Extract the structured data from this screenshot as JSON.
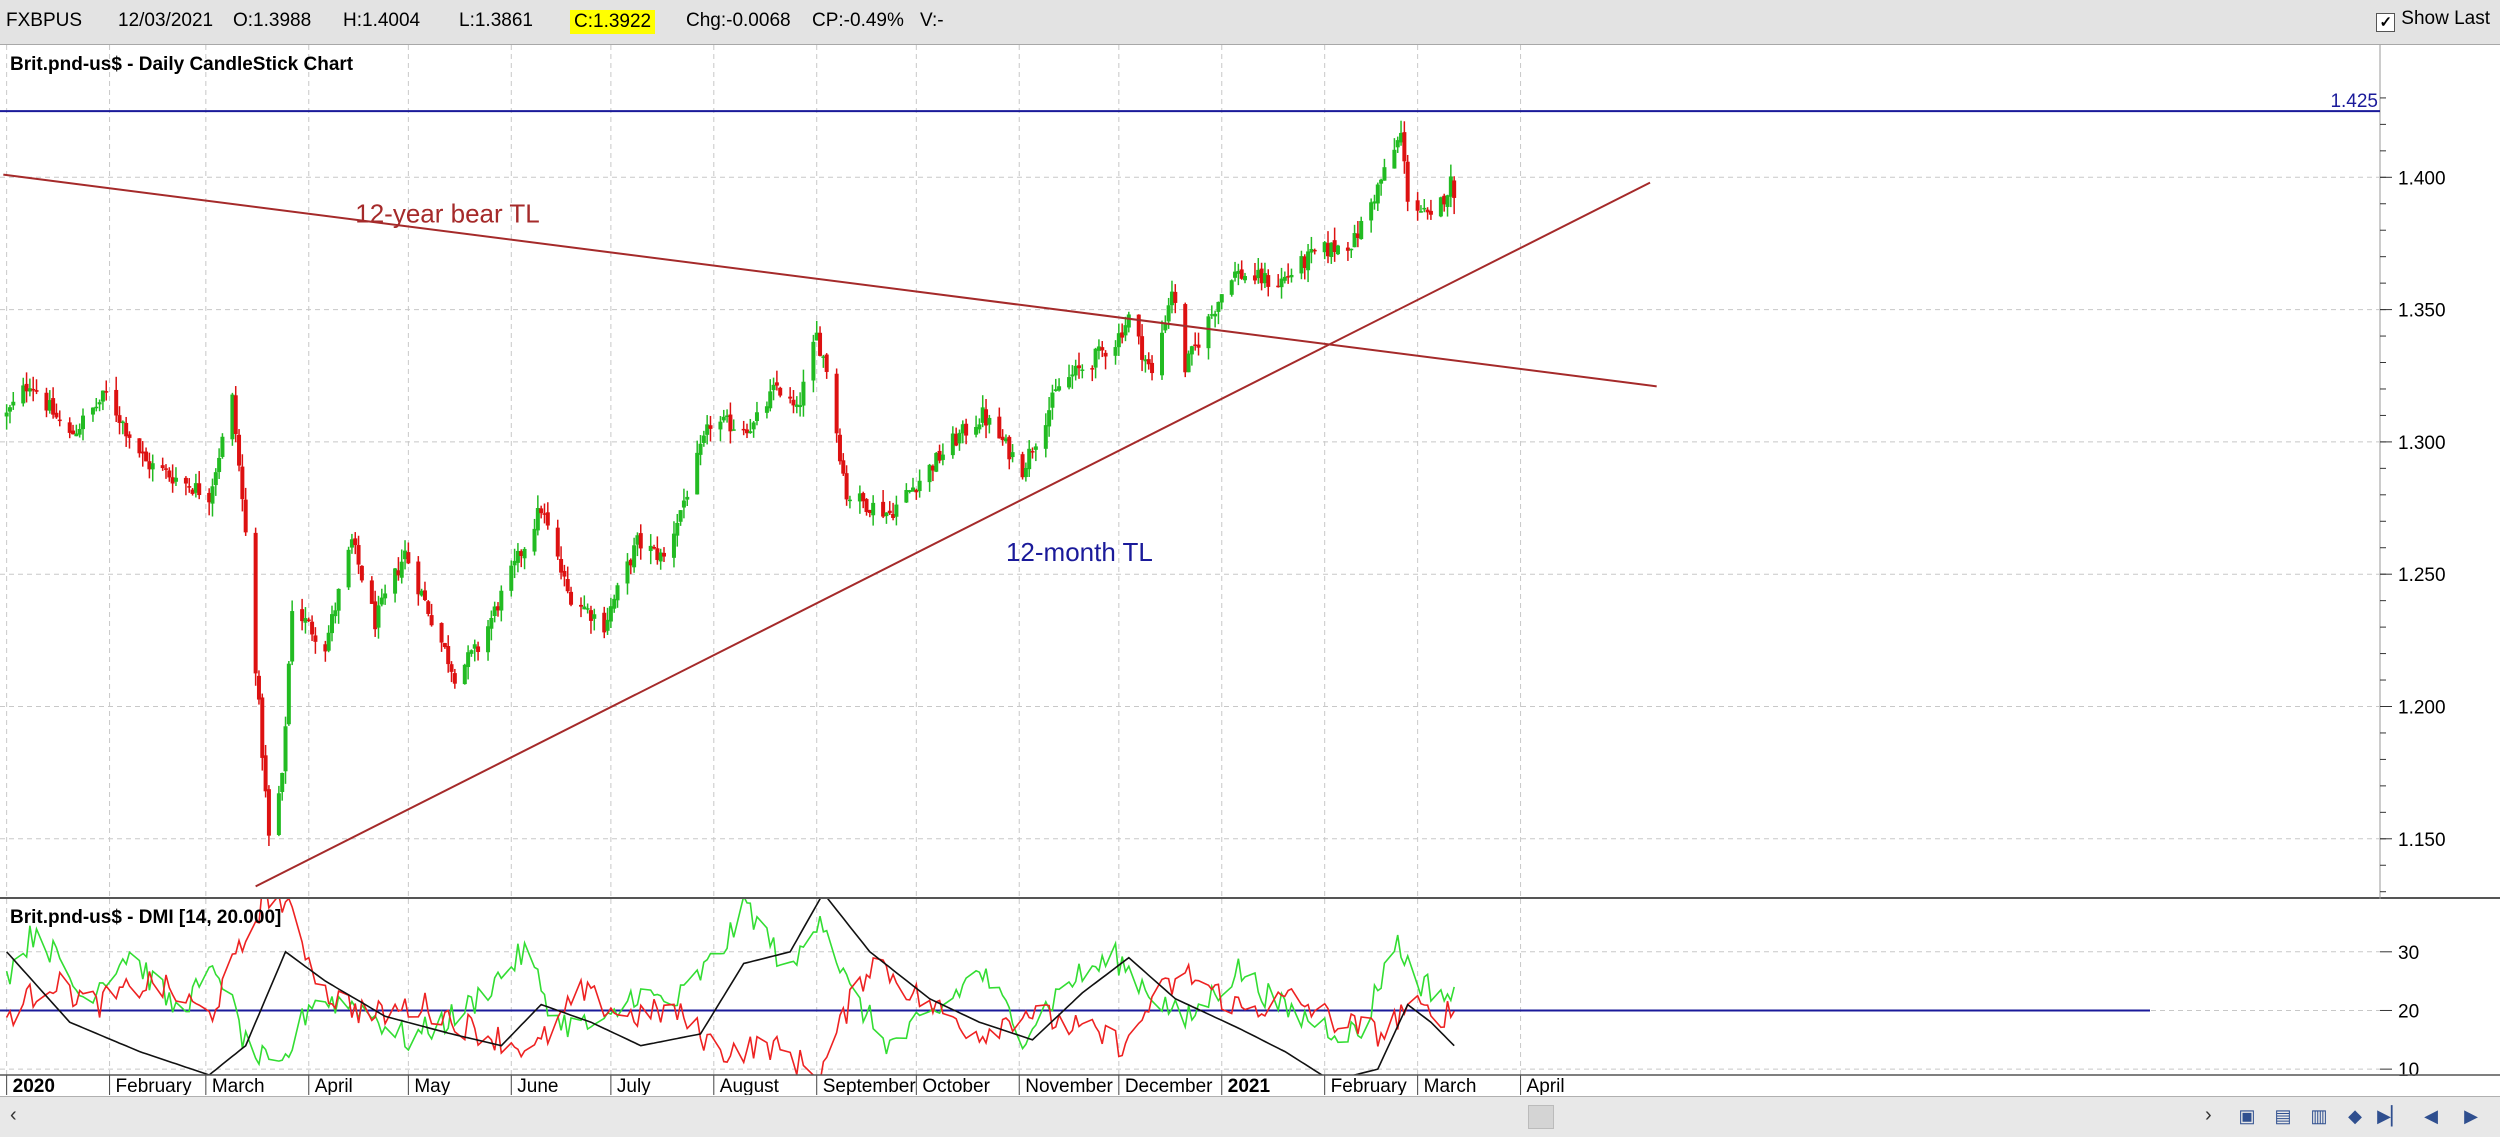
{
  "header": {
    "symbol": "FXBPUS",
    "date": "12/03/2021",
    "open": "O:1.3988",
    "high": "H:1.4004",
    "low": "L:1.3861",
    "close": "C:1.3922",
    "change": "Chg:-0.0068",
    "change_pct": "CP:-0.49%",
    "volume": "V:-",
    "show_last_label": "Show Last",
    "show_last_checked": "✓"
  },
  "colors": {
    "up_candle": "#22bb22",
    "down_candle": "#dd1111",
    "trendline": "#a52a2a",
    "hline": "#1a1a9a",
    "grid": "#c8c8c8",
    "plus_di": "#33dd33",
    "minus_di": "#ee2222",
    "adx": "#111111",
    "close_highlight": "#ffff00"
  },
  "chart_data": [
    {
      "type": "candlestick",
      "title": "Brit.pnd-us$ - Daily CandleStick Chart",
      "x_axis_labels": [
        "2020",
        "February",
        "March",
        "April",
        "May",
        "June",
        "July",
        "August",
        "September",
        "October",
        "November",
        "December",
        "2021",
        "February",
        "March",
        "April"
      ],
      "y_ticks": [
        1.15,
        1.2,
        1.25,
        1.3,
        1.35,
        1.4
      ],
      "y_tick_labels": [
        "1.150",
        "1.200",
        "1.250",
        "1.300",
        "1.350",
        "1.400"
      ],
      "ylim": [
        1.128,
        1.45
      ],
      "grid": true,
      "horizontal_line": {
        "value": 1.425,
        "label": "1.425"
      },
      "trendlines": [
        {
          "label": "12-year bear TL",
          "from": [
            "2019-12-31",
            1.401
          ],
          "to": [
            "2021-05-12",
            1.321
          ]
        },
        {
          "label": "12-month TL",
          "from": [
            "2020-03-16",
            1.132
          ],
          "to": [
            "2021-05-10",
            1.398
          ]
        }
      ],
      "annotations": [
        {
          "text": "12-year bear TL",
          "at": [
            "2020-04-15",
            1.383
          ]
        },
        {
          "text": "12-month TL",
          "at": [
            "2020-10-28",
            1.255
          ]
        }
      ],
      "anchors": [
        {
          "date": "2020-01-01",
          "close": 1.31
        },
        {
          "date": "2020-01-08",
          "close": 1.323
        },
        {
          "date": "2020-01-20",
          "close": 1.302
        },
        {
          "date": "2020-01-31",
          "close": 1.318
        },
        {
          "date": "2020-02-12",
          "close": 1.292
        },
        {
          "date": "2020-03-02",
          "close": 1.28
        },
        {
          "date": "2020-03-09",
          "close": 1.316
        },
        {
          "date": "2020-03-13",
          "close": 1.265
        },
        {
          "date": "2020-03-20",
          "close": 1.15
        },
        {
          "date": "2020-03-24",
          "close": 1.172
        },
        {
          "date": "2020-03-27",
          "close": 1.238
        },
        {
          "date": "2020-04-06",
          "close": 1.223
        },
        {
          "date": "2020-04-14",
          "close": 1.262
        },
        {
          "date": "2020-04-21",
          "close": 1.232
        },
        {
          "date": "2020-04-30",
          "close": 1.258
        },
        {
          "date": "2020-05-15",
          "close": 1.212
        },
        {
          "date": "2020-05-22",
          "close": 1.222
        },
        {
          "date": "2020-06-01",
          "close": 1.25
        },
        {
          "date": "2020-06-10",
          "close": 1.275
        },
        {
          "date": "2020-06-18",
          "close": 1.243
        },
        {
          "date": "2020-06-29",
          "close": 1.231
        },
        {
          "date": "2020-07-09",
          "close": 1.262
        },
        {
          "date": "2020-07-17",
          "close": 1.256
        },
        {
          "date": "2020-07-31",
          "close": 1.307
        },
        {
          "date": "2020-08-13",
          "close": 1.306
        },
        {
          "date": "2020-08-20",
          "close": 1.321
        },
        {
          "date": "2020-08-26",
          "close": 1.311
        },
        {
          "date": "2020-09-01",
          "close": 1.34
        },
        {
          "date": "2020-09-04",
          "close": 1.328
        },
        {
          "date": "2020-09-10",
          "close": 1.28
        },
        {
          "date": "2020-09-23",
          "close": 1.273
        },
        {
          "date": "2020-10-12",
          "close": 1.3
        },
        {
          "date": "2020-10-21",
          "close": 1.31
        },
        {
          "date": "2020-11-02",
          "close": 1.29
        },
        {
          "date": "2020-11-13",
          "close": 1.321
        },
        {
          "date": "2020-11-30",
          "close": 1.338
        },
        {
          "date": "2020-12-04",
          "close": 1.347
        },
        {
          "date": "2020-12-11",
          "close": 1.325
        },
        {
          "date": "2020-12-17",
          "close": 1.358
        },
        {
          "date": "2020-12-21",
          "close": 1.328
        },
        {
          "date": "2021-01-04",
          "close": 1.364
        },
        {
          "date": "2021-01-18",
          "close": 1.36
        },
        {
          "date": "2021-01-29",
          "close": 1.371
        },
        {
          "date": "2021-02-10",
          "close": 1.376
        },
        {
          "date": "2021-02-24",
          "close": 1.416
        },
        {
          "date": "2021-02-26",
          "close": 1.393
        },
        {
          "date": "2021-03-05",
          "close": 1.383
        },
        {
          "date": "2021-03-11",
          "close": 1.398
        },
        {
          "date": "2021-03-12",
          "close": 1.3922
        }
      ],
      "last_candle": {
        "date": "2021-03-12",
        "open": 1.3988,
        "high": 1.4004,
        "low": 1.3861,
        "close": 1.3922
      }
    },
    {
      "type": "line",
      "title": "Brit.pnd-us$ - DMI [14, 20.000]",
      "y_ticks": [
        10,
        20,
        30
      ],
      "y_tick_labels": [
        "10",
        "20",
        "30"
      ],
      "ylim": [
        9,
        39
      ],
      "grid": true,
      "horizontal_line": {
        "value": 20
      },
      "series": [
        {
          "key": "plus_di",
          "anchors": [
            [
              "2020-01-01",
              26
            ],
            [
              "2020-01-10",
              34
            ],
            [
              "2020-01-24",
              22
            ],
            [
              "2020-02-07",
              30
            ],
            [
              "2020-02-21",
              20
            ],
            [
              "2020-03-05",
              27
            ],
            [
              "2020-03-13",
              14
            ],
            [
              "2020-03-23",
              9
            ],
            [
              "2020-04-02",
              22
            ],
            [
              "2020-04-15",
              21
            ],
            [
              "2020-05-01",
              15
            ],
            [
              "2020-05-18",
              20
            ],
            [
              "2020-06-05",
              30
            ],
            [
              "2020-06-15",
              18
            ],
            [
              "2020-06-29",
              17
            ],
            [
              "2020-07-08",
              23
            ],
            [
              "2020-07-20",
              21
            ],
            [
              "2020-08-03",
              30
            ],
            [
              "2020-08-11",
              38
            ],
            [
              "2020-08-24",
              26
            ],
            [
              "2020-09-02",
              37
            ],
            [
              "2020-09-11",
              23
            ],
            [
              "2020-09-23",
              14
            ],
            [
              "2020-10-08",
              20
            ],
            [
              "2020-10-20",
              27
            ],
            [
              "2020-11-02",
              16
            ],
            [
              "2020-11-16",
              25
            ],
            [
              "2020-11-30",
              29
            ],
            [
              "2020-12-09",
              24
            ],
            [
              "2020-12-21",
              18
            ],
            [
              "2021-01-06",
              27
            ],
            [
              "2021-01-20",
              20
            ],
            [
              "2021-02-03",
              17
            ],
            [
              "2021-02-12",
              16
            ],
            [
              "2021-02-22",
              32
            ],
            [
              "2021-03-01",
              25
            ],
            [
              "2021-03-12",
              22
            ]
          ]
        },
        {
          "key": "minus_di",
          "anchors": [
            [
              "2020-01-01",
              19
            ],
            [
              "2020-01-14",
              25
            ],
            [
              "2020-01-28",
              21
            ],
            [
              "2020-02-14",
              25
            ],
            [
              "2020-03-02",
              19
            ],
            [
              "2020-03-13",
              32
            ],
            [
              "2020-03-19",
              40
            ],
            [
              "2020-03-25",
              38
            ],
            [
              "2020-04-06",
              23
            ],
            [
              "2020-04-20",
              19
            ],
            [
              "2020-05-05",
              21
            ],
            [
              "2020-05-20",
              17
            ],
            [
              "2020-06-08",
              13
            ],
            [
              "2020-06-22",
              23
            ],
            [
              "2020-07-06",
              19
            ],
            [
              "2020-07-20",
              20
            ],
            [
              "2020-08-03",
              13
            ],
            [
              "2020-08-18",
              14
            ],
            [
              "2020-09-02",
              9
            ],
            [
              "2020-09-10",
              20
            ],
            [
              "2020-09-18",
              29
            ],
            [
              "2020-10-02",
              22
            ],
            [
              "2020-10-20",
              16
            ],
            [
              "2020-11-03",
              20
            ],
            [
              "2020-11-18",
              17
            ],
            [
              "2020-12-04",
              14
            ],
            [
              "2020-12-11",
              22
            ],
            [
              "2020-12-22",
              26
            ],
            [
              "2021-01-08",
              20
            ],
            [
              "2021-01-22",
              22
            ],
            [
              "2021-02-05",
              18
            ],
            [
              "2021-02-19",
              16
            ],
            [
              "2021-02-26",
              21
            ],
            [
              "2021-03-05",
              19
            ],
            [
              "2021-03-12",
              20
            ]
          ]
        },
        {
          "key": "adx",
          "anchors": [
            [
              "2020-01-01",
              30
            ],
            [
              "2020-01-20",
              18
            ],
            [
              "2020-02-10",
              13
            ],
            [
              "2020-03-02",
              9
            ],
            [
              "2020-03-13",
              14
            ],
            [
              "2020-03-25",
              30
            ],
            [
              "2020-04-06",
              25
            ],
            [
              "2020-04-24",
              19
            ],
            [
              "2020-05-14",
              16
            ],
            [
              "2020-05-29",
              14
            ],
            [
              "2020-06-10",
              21
            ],
            [
              "2020-06-25",
              18
            ],
            [
              "2020-07-10",
              14
            ],
            [
              "2020-07-28",
              16
            ],
            [
              "2020-08-10",
              28
            ],
            [
              "2020-08-24",
              30
            ],
            [
              "2020-09-03",
              40
            ],
            [
              "2020-09-17",
              30
            ],
            [
              "2020-10-05",
              22
            ],
            [
              "2020-10-20",
              18
            ],
            [
              "2020-11-05",
              15
            ],
            [
              "2020-11-20",
              23
            ],
            [
              "2020-12-04",
              29
            ],
            [
              "2020-12-18",
              22
            ],
            [
              "2021-01-06",
              17
            ],
            [
              "2021-01-20",
              13
            ],
            [
              "2021-02-03",
              8
            ],
            [
              "2021-02-17",
              10
            ],
            [
              "2021-02-26",
              21
            ],
            [
              "2021-03-05",
              18
            ],
            [
              "2021-03-12",
              14
            ]
          ]
        }
      ]
    }
  ],
  "footer": {
    "scroll_left": "‹",
    "scroll_right": "›",
    "nav_buttons": [
      "▣",
      "▤",
      "▥",
      "◆",
      "▶▏",
      "◀",
      "▶"
    ]
  }
}
